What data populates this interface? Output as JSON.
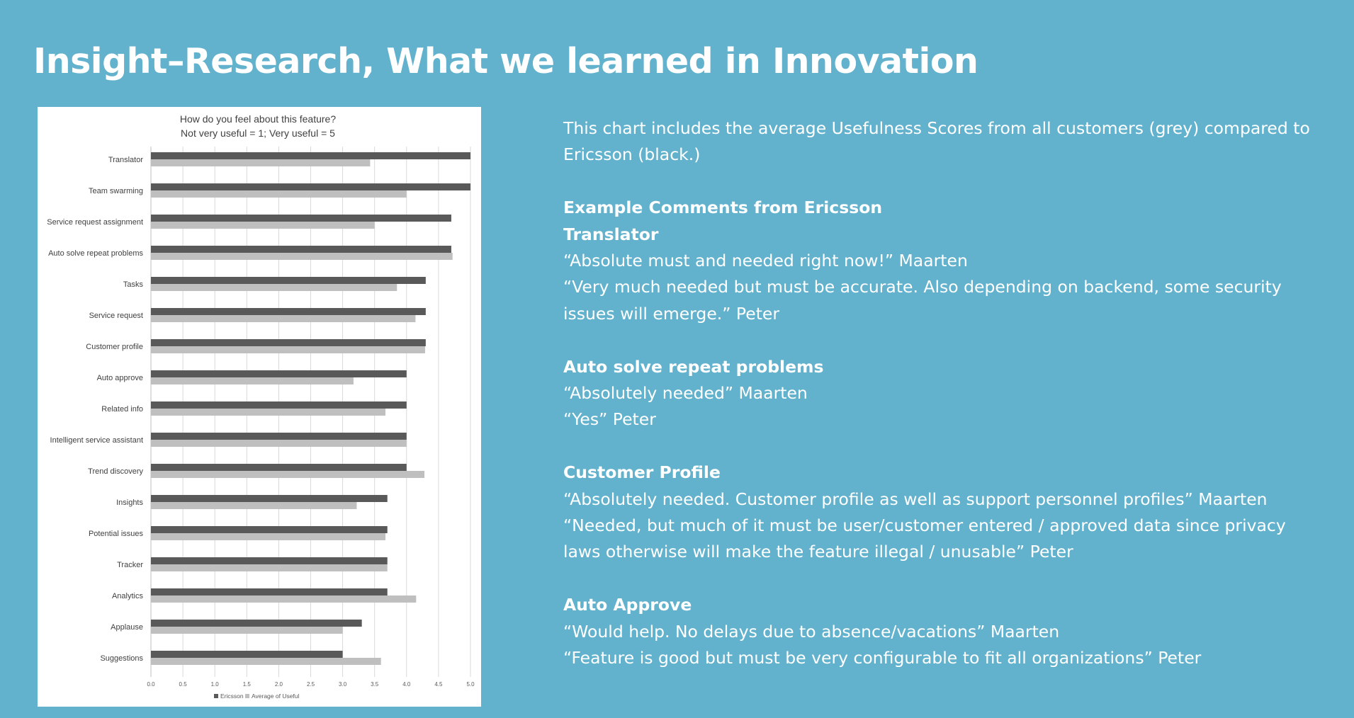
{
  "slide": {
    "title": "Insight–Research, What we learned in Innovation",
    "intro": "This chart includes the average Usefulness Scores from all customers (grey) compared to Ericsson (black.)",
    "examples_heading": "Example Comments from Ericsson",
    "sections": [
      {
        "heading": "Translator",
        "comments": [
          "“Absolute must and needed right now!” Maarten",
          "“Very much needed but must be accurate. Also depending on backend, some security issues will emerge.” Peter"
        ]
      },
      {
        "heading": "Auto solve repeat problems",
        "comments": [
          "“Absolutely needed” Maarten",
          "“Yes” Peter"
        ]
      },
      {
        "heading": "Customer Profile",
        "comments": [
          "“Absolutely needed. Customer profile as well as support personnel profiles” Maarten",
          "“Needed, but much of it must be user/customer entered / approved data since privacy laws otherwise will make the feature illegal / unusable” Peter"
        ]
      },
      {
        "heading": "Auto Approve",
        "comments": [
          "“Would help. No delays due to absence/vacations” Maarten",
          "“Feature is good but must be very configurable to fit all organizations” Peter"
        ]
      }
    ]
  },
  "chart_data": {
    "type": "bar",
    "orientation": "horizontal",
    "title": "How do you feel about this feature?",
    "subtitle": "Not very useful = 1; Very useful = 5",
    "xlabel": "",
    "ylabel": "",
    "xlim": [
      0,
      5
    ],
    "x_ticks": [
      0,
      0.5,
      1,
      1.5,
      2,
      2.5,
      3,
      3.5,
      4,
      4.5,
      5
    ],
    "x_tick_labels": [
      "0.0",
      "0.5",
      "1.0",
      "1.5",
      "2.0",
      "2.5",
      "3.0",
      "3.5",
      "4.0",
      "4.5",
      "5.0"
    ],
    "grid": true,
    "legend_position": "bottom",
    "categories": [
      "Translator",
      "Team swarming",
      "Service request assignment",
      "Auto solve repeat problems",
      "Tasks",
      "Service request",
      "Customer profile",
      "Auto approve",
      "Related info",
      "Intelligent service assistant",
      "Trend discovery",
      "Insights",
      "Potential issues",
      "Tracker",
      "Analytics",
      "Applause",
      "Suggestions"
    ],
    "series": [
      {
        "name": "Ericsson",
        "color": "#595959",
        "values": [
          5.0,
          5.0,
          4.7,
          4.7,
          4.3,
          4.3,
          4.3,
          4.0,
          4.0,
          4.0,
          4.0,
          3.7,
          3.7,
          3.7,
          3.7,
          3.3,
          3.0
        ]
      },
      {
        "name": "Average of Useful",
        "color": "#bfbfbf",
        "values": [
          3.43,
          4.0,
          3.5,
          4.72,
          3.85,
          4.14,
          4.29,
          3.17,
          3.67,
          4.0,
          4.28,
          3.22,
          3.67,
          3.7,
          4.15,
          3.0,
          3.6
        ]
      }
    ]
  }
}
